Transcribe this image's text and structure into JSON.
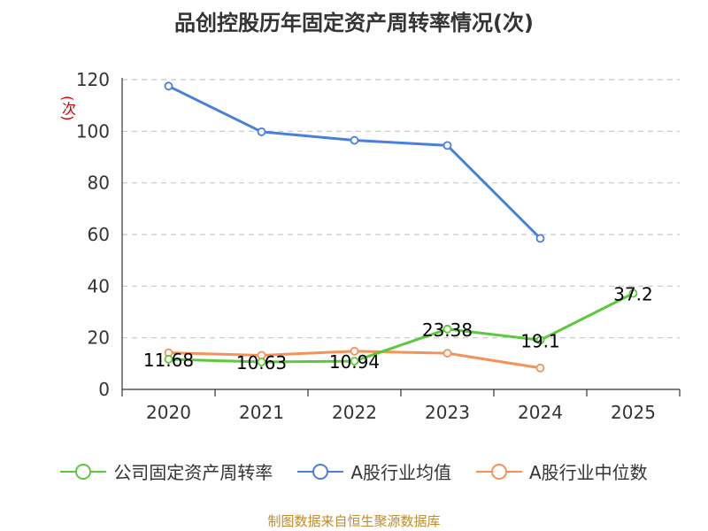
{
  "chart_data": {
    "type": "line",
    "title": "品创控股历年固定资产周转率情况(次)",
    "ylabel": "(次)",
    "xlabel": "",
    "categories": [
      "2020",
      "2021",
      "2022",
      "2023",
      "2024",
      "2025"
    ],
    "ylim": [
      0,
      120
    ],
    "yticks": [
      0,
      20,
      40,
      60,
      80,
      100,
      120
    ],
    "grid": true,
    "legend_position": "bottom",
    "series": [
      {
        "name": "公司固定资产周转率",
        "color": "#5cc83c",
        "values": [
          11.68,
          10.63,
          10.94,
          23.38,
          19.1,
          37.2
        ],
        "labels": [
          "11.68",
          "10.63",
          "10.94",
          "23.38",
          "19.1",
          "37.2"
        ]
      },
      {
        "name": "A股行业均值",
        "color": "#4a7fdc",
        "values": [
          117.5,
          99.8,
          96.5,
          94.5,
          58.5,
          null
        ]
      },
      {
        "name": "A股行业中位数",
        "color": "#f5925a",
        "values": [
          14.2,
          13.2,
          14.8,
          14.0,
          8.3,
          null
        ]
      }
    ],
    "source": "制图数据来自恒生聚源数据库"
  }
}
